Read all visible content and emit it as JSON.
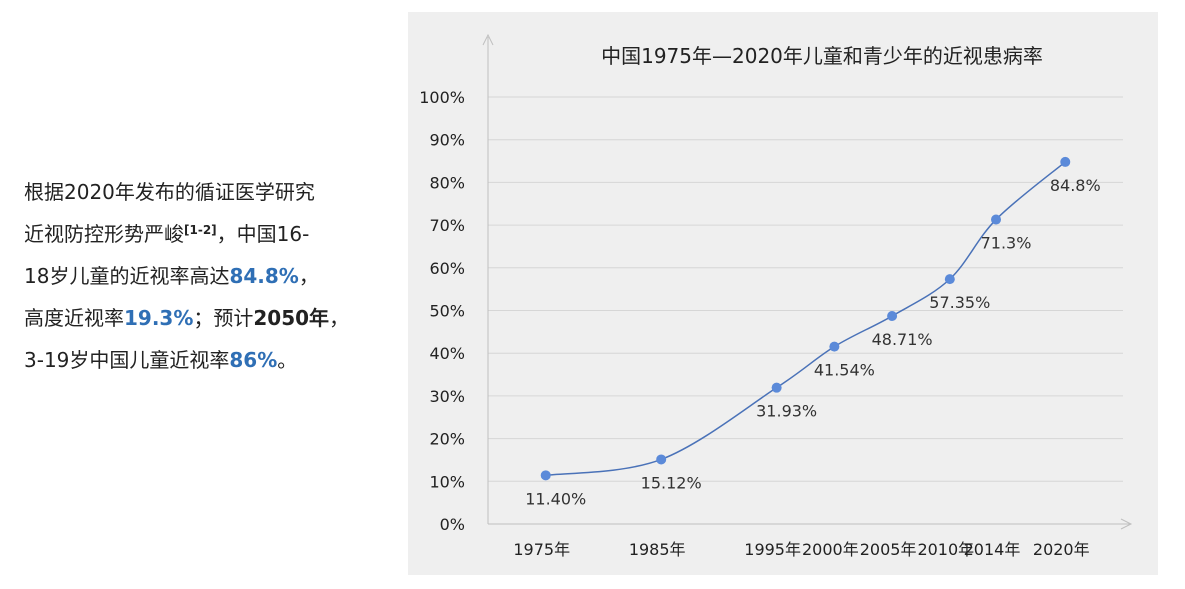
{
  "intro": {
    "line1": "根据2020年发布的循证医学研究",
    "line2_text": "近视防控形势严峻",
    "line2_ref": "[1-2]",
    "line2_tail": "，中国16-",
    "line3_pre": "18岁儿童的近视率高达",
    "line3_value": "84.8%",
    "line3_post": "，",
    "line4_pre": "高度近视率",
    "line4_value": "19.3%",
    "line4_mid": "；预计",
    "line4_year": "2050年",
    "line4_post": "，",
    "line5_pre": "3-19岁中国儿童近视率",
    "line5_value": "86%",
    "line5_post": "。"
  },
  "colors": {
    "highlight": "#2f6fb5",
    "line": "#4a72b8",
    "marker": "#5b8ad9",
    "grid": "#d6d6d6",
    "panel": "#efefef"
  },
  "chart_data": {
    "type": "line",
    "title": "中国1975年—2020年儿童和青少年的近视患病率",
    "x": [
      1975,
      1985,
      1995,
      2000,
      2005,
      2010,
      2014,
      2020
    ],
    "categories": [
      "1975年",
      "1985年",
      "1995年",
      "2000年",
      "2005年",
      "2010年",
      "2014年",
      "2020年"
    ],
    "values": [
      11.4,
      15.12,
      31.93,
      41.54,
      48.71,
      57.35,
      71.3,
      84.8
    ],
    "data_labels": [
      "11.40%",
      "15.12%",
      "31.93%",
      "41.54%",
      "48.71%",
      "57.35%",
      "71.3%",
      "84.8%"
    ],
    "yticks": [
      "0%",
      "10%",
      "20%",
      "30%",
      "40%",
      "50%",
      "60%",
      "70%",
      "80%",
      "90%",
      "100%"
    ],
    "ylim": [
      0,
      100
    ],
    "grid": true,
    "legend": "none"
  }
}
